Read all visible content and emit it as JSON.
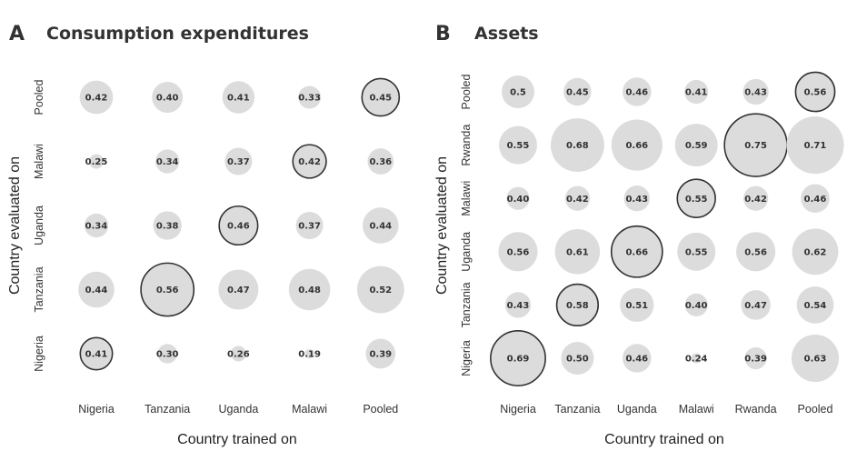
{
  "chart_data": [
    {
      "panel_letter": "A",
      "title": "Consumption expenditures",
      "type": "bubble-matrix",
      "xlabel": "Country trained on",
      "ylabel": "Country evaluated on",
      "x_categories": [
        "Nigeria",
        "Tanzania",
        "Uganda",
        "Malawi",
        "Pooled"
      ],
      "y_categories": [
        "Pooled",
        "Malawi",
        "Uganda",
        "Tanzania",
        "Nigeria"
      ],
      "values": [
        [
          "0.42",
          "0.40",
          "0.41",
          "0.33",
          "0.45"
        ],
        [
          "0.25",
          "0.34",
          "0.37",
          "0.42",
          "0.36"
        ],
        [
          "0.34",
          "0.38",
          "0.46",
          "0.37",
          "0.44"
        ],
        [
          "0.44",
          "0.56",
          "0.47",
          "0.48",
          "0.52"
        ],
        [
          "0.41",
          "0.30",
          "0.26",
          "0.19",
          "0.39"
        ]
      ],
      "highlight_diagonal": true
    },
    {
      "panel_letter": "B",
      "title": "Assets",
      "type": "bubble-matrix",
      "xlabel": "Country trained on",
      "ylabel": "Country evaluated on",
      "x_categories": [
        "Nigeria",
        "Tanzania",
        "Uganda",
        "Malawi",
        "Rwanda",
        "Pooled"
      ],
      "y_categories": [
        "Pooled",
        "Rwanda",
        "Malawi",
        "Uganda",
        "Tanzania",
        "Nigeria"
      ],
      "values": [
        [
          "0.5",
          "0.45",
          "0.46",
          "0.41",
          "0.43",
          "0.56"
        ],
        [
          "0.55",
          "0.68",
          "0.66",
          "0.59",
          "0.75",
          "0.71"
        ],
        [
          "0.40",
          "0.42",
          "0.43",
          "0.55",
          "0.42",
          "0.46"
        ],
        [
          "0.56",
          "0.61",
          "0.66",
          "0.55",
          "0.56",
          "0.62"
        ],
        [
          "0.43",
          "0.58",
          "0.51",
          "0.40",
          "0.47",
          "0.54"
        ],
        [
          "0.69",
          "0.50",
          "0.46",
          "0.24",
          "0.39",
          "0.63"
        ]
      ],
      "highlight_diagonal": true
    }
  ]
}
